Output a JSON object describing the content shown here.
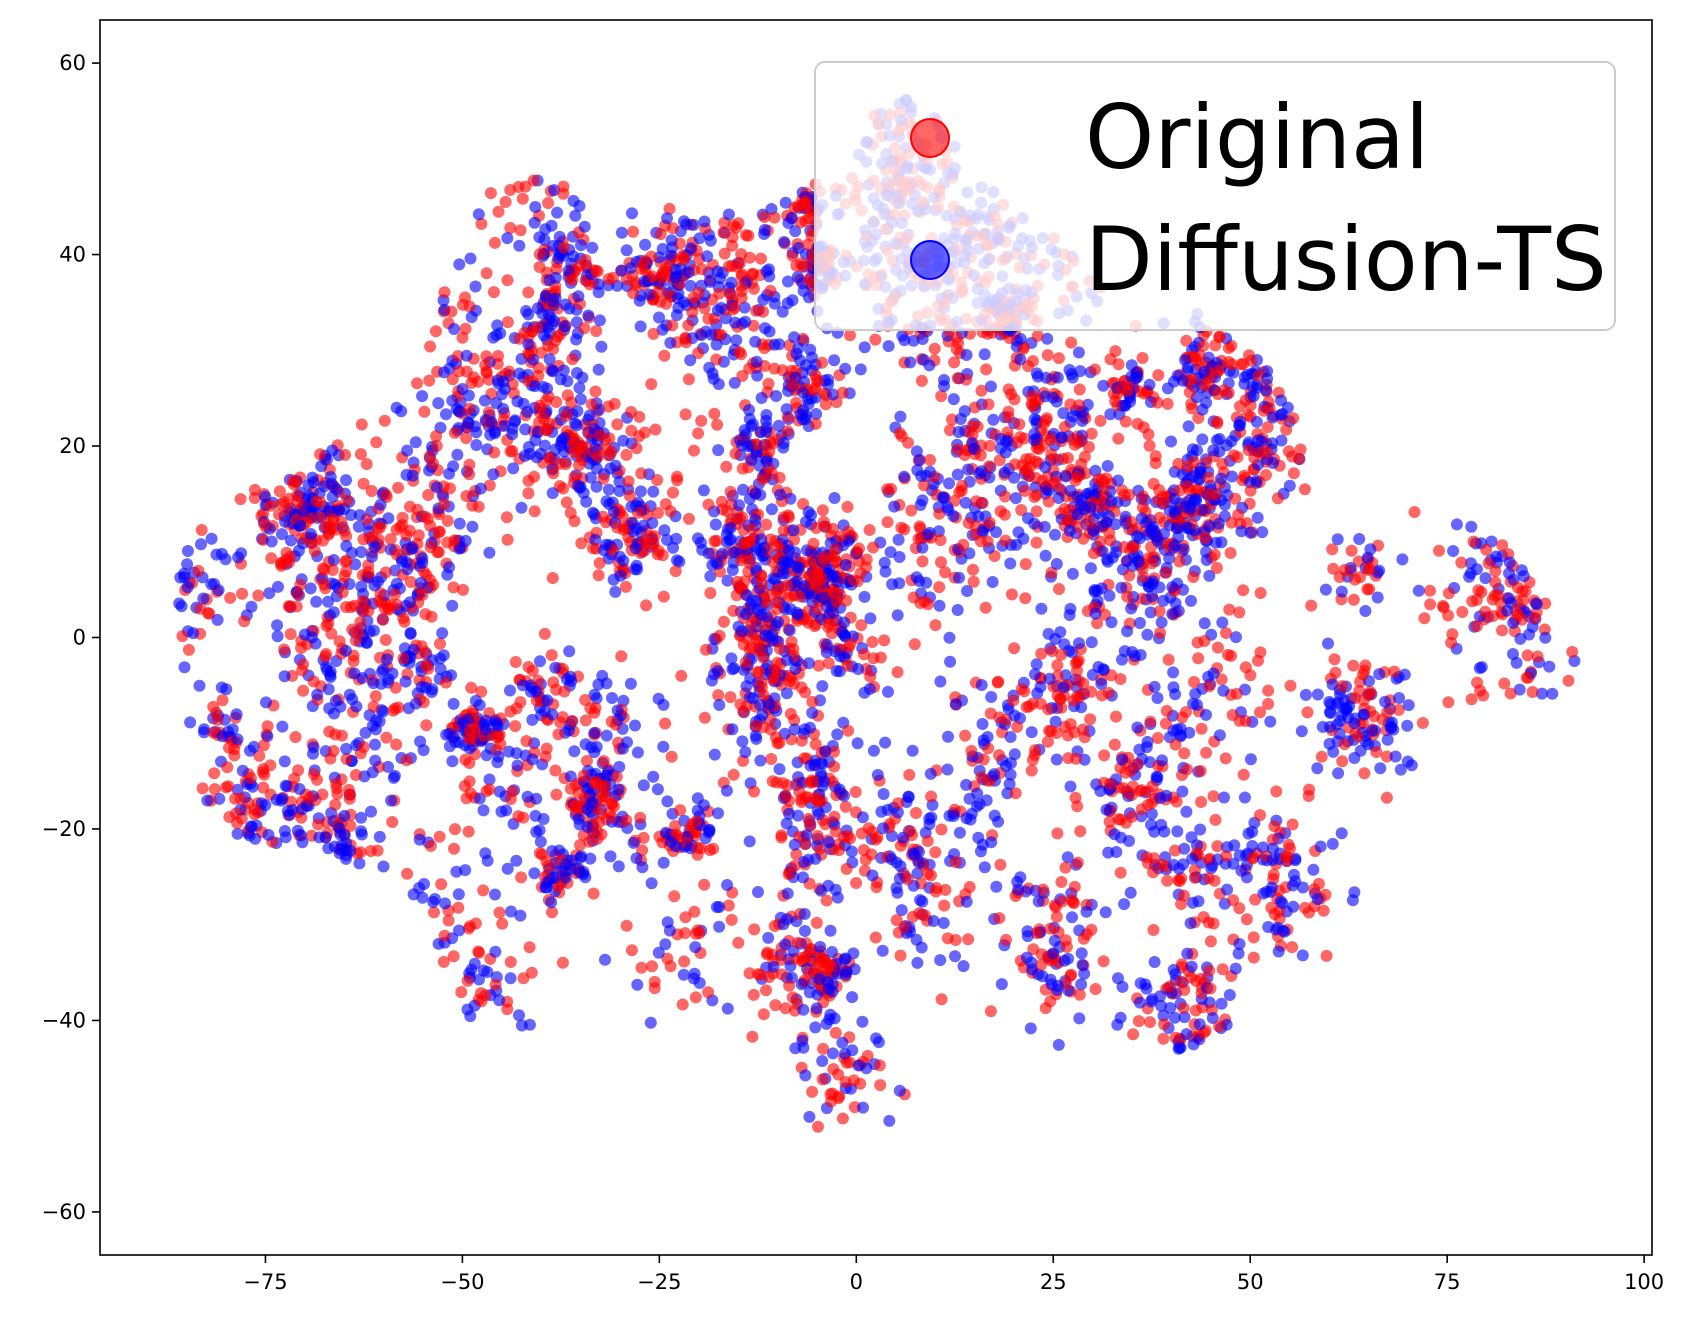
{
  "chart_data": {
    "type": "scatter",
    "title": "",
    "xlabel": "",
    "ylabel": "",
    "xlim": [
      -96,
      101
    ],
    "ylim": [
      -64.5,
      64.5
    ],
    "xticks": [
      -75,
      -50,
      -25,
      0,
      25,
      50,
      75,
      100
    ],
    "yticks": [
      -60,
      -40,
      -20,
      0,
      20,
      40,
      60
    ],
    "xtick_labels": [
      "−75",
      "−50",
      "−25",
      "0",
      "25",
      "50",
      "75",
      "100"
    ],
    "ytick_labels": [
      "−60",
      "−40",
      "−20",
      "0",
      "20",
      "40",
      "60"
    ],
    "grid": false,
    "legend_position": "top-right",
    "marker_opacity": 0.6,
    "series": [
      {
        "name": "Original",
        "color": "#ff0000",
        "point_count": 3000
      },
      {
        "name": "Diffusion-TS",
        "color": "#0000ff",
        "point_count": 3000
      }
    ],
    "point_cloud": {
      "description_of_shape": "t-SNE embedding; both series overlap uniformly across one blob",
      "x_range": [
        -88,
        92
      ],
      "y_range": [
        -58,
        58
      ],
      "outline": [
        [
          -88,
          2
        ],
        [
          -85,
          10
        ],
        [
          -78,
          15
        ],
        [
          -70,
          18
        ],
        [
          -60,
          24
        ],
        [
          -55,
          30
        ],
        [
          -52,
          38
        ],
        [
          -48,
          46
        ],
        [
          -40,
          49
        ],
        [
          -32,
          48
        ],
        [
          -20,
          44
        ],
        [
          -10,
          45
        ],
        [
          0,
          50
        ],
        [
          4,
          58
        ],
        [
          10,
          55
        ],
        [
          18,
          46
        ],
        [
          28,
          40
        ],
        [
          40,
          38
        ],
        [
          48,
          32
        ],
        [
          55,
          25
        ],
        [
          58,
          18
        ],
        [
          65,
          20
        ],
        [
          75,
          20
        ],
        [
          80,
          12
        ],
        [
          88,
          4
        ],
        [
          92,
          0
        ],
        [
          90,
          -6
        ],
        [
          80,
          -8
        ],
        [
          70,
          -14
        ],
        [
          65,
          -25
        ],
        [
          60,
          -34
        ],
        [
          52,
          -33
        ],
        [
          48,
          -40
        ],
        [
          40,
          -44
        ],
        [
          28,
          -44
        ],
        [
          20,
          -52
        ],
        [
          15,
          -50
        ],
        [
          8,
          -52
        ],
        [
          6,
          -58
        ],
        [
          -6,
          -58
        ],
        [
          -8,
          -50
        ],
        [
          -12,
          -45
        ],
        [
          -22,
          -42
        ],
        [
          -35,
          -43
        ],
        [
          -48,
          -41
        ],
        [
          -52,
          -37
        ],
        [
          -55,
          -28
        ],
        [
          -60,
          -25
        ],
        [
          -68,
          -22
        ],
        [
          -75,
          -22
        ],
        [
          -80,
          -20
        ],
        [
          -85,
          -14
        ],
        [
          -88,
          -8
        ]
      ]
    }
  }
}
